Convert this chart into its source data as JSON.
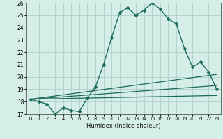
{
  "title": "",
  "xlabel": "Humidex (Indice chaleur)",
  "ylabel": "",
  "bg_color": "#d6eee8",
  "grid_color": "#b0cfc8",
  "line_color": "#1a6b5a",
  "xlim": [
    -0.5,
    23.5
  ],
  "ylim": [
    17,
    26
  ],
  "yticks": [
    17,
    18,
    19,
    20,
    21,
    22,
    23,
    24,
    25,
    26
  ],
  "xticks": [
    0,
    1,
    2,
    3,
    4,
    5,
    6,
    7,
    8,
    9,
    10,
    11,
    12,
    13,
    14,
    15,
    16,
    17,
    18,
    19,
    20,
    21,
    22,
    23
  ],
  "series": [
    {
      "x": [
        0,
        1,
        2,
        3,
        4,
        5,
        6,
        7,
        8,
        9,
        10,
        11,
        12,
        13,
        14,
        15,
        16,
        17,
        18,
        19,
        20,
        21,
        22,
        23
      ],
      "y": [
        18.2,
        18.0,
        17.8,
        17.0,
        17.5,
        17.3,
        17.2,
        18.3,
        19.2,
        21.0,
        23.2,
        25.2,
        25.6,
        25.0,
        25.4,
        26.0,
        25.5,
        24.7,
        24.3,
        22.3,
        20.8,
        21.2,
        20.4,
        19.0
      ],
      "marker": "D",
      "markersize": 2.5,
      "linewidth": 1.0
    },
    {
      "x": [
        0,
        23
      ],
      "y": [
        18.2,
        20.2
      ],
      "marker": null,
      "markersize": 0,
      "linewidth": 0.9
    },
    {
      "x": [
        0,
        23
      ],
      "y": [
        18.2,
        19.3
      ],
      "marker": null,
      "markersize": 0,
      "linewidth": 0.9
    },
    {
      "x": [
        0,
        23
      ],
      "y": [
        18.2,
        18.5
      ],
      "marker": null,
      "markersize": 0,
      "linewidth": 0.9
    }
  ]
}
